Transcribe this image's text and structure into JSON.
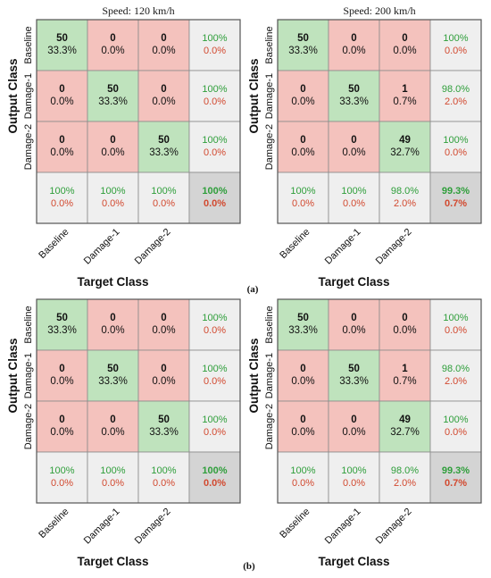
{
  "colors": {
    "diag": "#bfe3bd",
    "offdiag": "#f4c2bd",
    "summary": "#efefef",
    "corner": "#d4d4d4",
    "green_text": "#2e9e3a",
    "red_text": "#d2492f"
  },
  "panel_labels": [
    "(a)",
    "(b)"
  ],
  "chart_data": [
    {
      "type": "heatmap",
      "title": "Speed: 120 km/h",
      "xlabel": "Target Class",
      "ylabel": "Output Class",
      "classes": [
        "Baseline",
        "Damage-1",
        "Damage-2"
      ],
      "counts": [
        [
          50,
          0,
          0
        ],
        [
          0,
          50,
          0
        ],
        [
          0,
          0,
          50
        ]
      ],
      "cell_pct": [
        [
          "33.3%",
          "0.0%",
          "0.0%"
        ],
        [
          "0.0%",
          "33.3%",
          "0.0%"
        ],
        [
          "0.0%",
          "0.0%",
          "33.3%"
        ]
      ],
      "row_summary": [
        [
          "100%",
          "0.0%"
        ],
        [
          "100%",
          "0.0%"
        ],
        [
          "100%",
          "0.0%"
        ]
      ],
      "col_summary": [
        [
          "100%",
          "0.0%"
        ],
        [
          "100%",
          "0.0%"
        ],
        [
          "100%",
          "0.0%"
        ]
      ],
      "overall": [
        "100%",
        "0.0%"
      ]
    },
    {
      "type": "heatmap",
      "title": "Speed: 200 km/h",
      "xlabel": "Target Class",
      "ylabel": "Output Class",
      "classes": [
        "Baseline",
        "Damage-1",
        "Damage-2"
      ],
      "counts": [
        [
          50,
          0,
          0
        ],
        [
          0,
          50,
          1
        ],
        [
          0,
          0,
          49
        ]
      ],
      "cell_pct": [
        [
          "33.3%",
          "0.0%",
          "0.0%"
        ],
        [
          "0.0%",
          "33.3%",
          "0.7%"
        ],
        [
          "0.0%",
          "0.0%",
          "32.7%"
        ]
      ],
      "row_summary": [
        [
          "100%",
          "0.0%"
        ],
        [
          "98.0%",
          "2.0%"
        ],
        [
          "100%",
          "0.0%"
        ]
      ],
      "col_summary": [
        [
          "100%",
          "0.0%"
        ],
        [
          "100%",
          "0.0%"
        ],
        [
          "98.0%",
          "2.0%"
        ]
      ],
      "overall": [
        "99.3%",
        "0.7%"
      ]
    },
    {
      "type": "heatmap",
      "title": "",
      "xlabel": "Target Class",
      "ylabel": "Output Class",
      "classes": [
        "Baseline",
        "Damage-1",
        "Damage-2"
      ],
      "counts": [
        [
          50,
          0,
          0
        ],
        [
          0,
          50,
          0
        ],
        [
          0,
          0,
          50
        ]
      ],
      "cell_pct": [
        [
          "33.3%",
          "0.0%",
          "0.0%"
        ],
        [
          "0.0%",
          "33.3%",
          "0.0%"
        ],
        [
          "0.0%",
          "0.0%",
          "33.3%"
        ]
      ],
      "row_summary": [
        [
          "100%",
          "0.0%"
        ],
        [
          "100%",
          "0.0%"
        ],
        [
          "100%",
          "0.0%"
        ]
      ],
      "col_summary": [
        [
          "100%",
          "0.0%"
        ],
        [
          "100%",
          "0.0%"
        ],
        [
          "100%",
          "0.0%"
        ]
      ],
      "overall": [
        "100%",
        "0.0%"
      ]
    },
    {
      "type": "heatmap",
      "title": "",
      "xlabel": "Target Class",
      "ylabel": "Output Class",
      "classes": [
        "Baseline",
        "Damage-1",
        "Damage-2"
      ],
      "counts": [
        [
          50,
          0,
          0
        ],
        [
          0,
          50,
          1
        ],
        [
          0,
          0,
          49
        ]
      ],
      "cell_pct": [
        [
          "33.3%",
          "0.0%",
          "0.0%"
        ],
        [
          "0.0%",
          "33.3%",
          "0.7%"
        ],
        [
          "0.0%",
          "0.0%",
          "32.7%"
        ]
      ],
      "row_summary": [
        [
          "100%",
          "0.0%"
        ],
        [
          "98.0%",
          "2.0%"
        ],
        [
          "100%",
          "0.0%"
        ]
      ],
      "col_summary": [
        [
          "100%",
          "0.0%"
        ],
        [
          "100%",
          "0.0%"
        ],
        [
          "98.0%",
          "2.0%"
        ]
      ],
      "overall": [
        "99.3%",
        "0.7%"
      ]
    }
  ]
}
